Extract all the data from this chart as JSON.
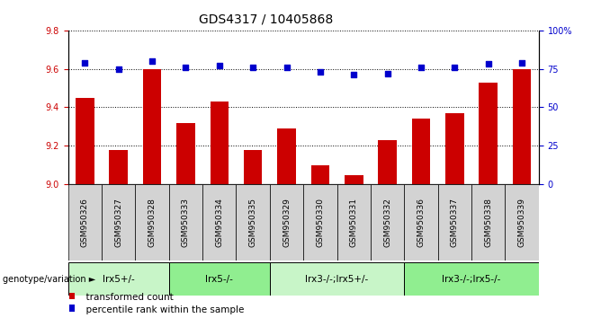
{
  "title": "GDS4317 / 10405868",
  "samples": [
    "GSM950326",
    "GSM950327",
    "GSM950328",
    "GSM950333",
    "GSM950334",
    "GSM950335",
    "GSM950329",
    "GSM950330",
    "GSM950331",
    "GSM950332",
    "GSM950336",
    "GSM950337",
    "GSM950338",
    "GSM950339"
  ],
  "bar_values": [
    9.45,
    9.18,
    9.6,
    9.32,
    9.43,
    9.18,
    9.29,
    9.1,
    9.05,
    9.23,
    9.34,
    9.37,
    9.53,
    9.6
  ],
  "scatter_values": [
    79,
    75,
    80,
    76,
    77,
    76,
    76,
    73,
    71,
    72,
    76,
    76,
    78,
    79
  ],
  "groups": [
    {
      "label": "lrx5+/-",
      "start": 0,
      "end": 3
    },
    {
      "label": "lrx5-/-",
      "start": 3,
      "end": 6
    },
    {
      "label": "lrx3-/-;lrx5+/-",
      "start": 6,
      "end": 10
    },
    {
      "label": "lrx3-/-;lrx5-/-",
      "start": 10,
      "end": 14
    }
  ],
  "group_colors": [
    "#c8f5c8",
    "#90ee90",
    "#c8f5c8",
    "#90ee90"
  ],
  "ylim_left": [
    9.0,
    9.8
  ],
  "ylim_right": [
    0,
    100
  ],
  "yticks_left": [
    9.0,
    9.2,
    9.4,
    9.6,
    9.8
  ],
  "yticks_right": [
    0,
    25,
    50,
    75,
    100
  ],
  "ytick_labels_right": [
    "0",
    "25",
    "50",
    "75",
    "100%"
  ],
  "bar_color": "#CC0000",
  "scatter_color": "#0000CC",
  "bar_width": 0.55,
  "legend_items": [
    {
      "label": "transformed count",
      "color": "#CC0000"
    },
    {
      "label": "percentile rank within the sample",
      "color": "#0000CC"
    }
  ],
  "group_label": "genotype/variation",
  "tick_label_color_left": "#CC0000",
  "tick_label_color_right": "#0000CC",
  "sample_box_color": "#d3d3d3",
  "fig_width": 6.58,
  "fig_height": 3.54
}
